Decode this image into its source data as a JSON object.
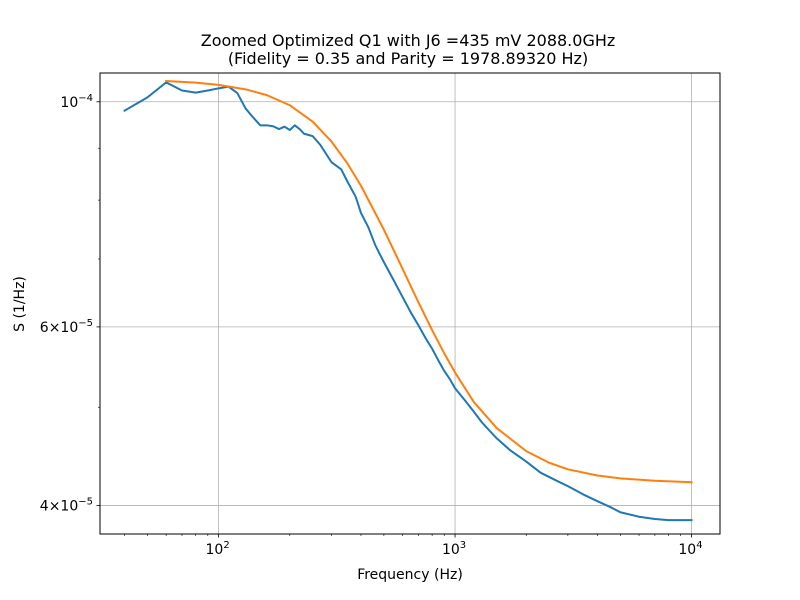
{
  "chart_data": {
    "type": "line",
    "title_lines": [
      "Zoomed Optimized Q1 with J6 =435 mV 2088.0GHz",
      "(Fidelity = 0.35 and Parity = 1978.89320 Hz)"
    ],
    "xlabel": "Frequency (Hz)",
    "ylabel": "S (1/Hz)",
    "x_scale": "log",
    "y_scale": "log",
    "xlim": [
      31.5,
      13200
    ],
    "ylim": [
      3.75e-05,
      0.00010675
    ],
    "x_ticks": [
      {
        "value": 100,
        "base": "10",
        "exp": "2"
      },
      {
        "value": 1000,
        "base": "10",
        "exp": "3"
      },
      {
        "value": 10000,
        "base": "10",
        "exp": "4"
      }
    ],
    "y_ticks": [
      {
        "value": 4e-05,
        "mant": "4",
        "base": "10",
        "exp": "−5"
      },
      {
        "value": 6e-05,
        "mant": "6",
        "base": "10",
        "exp": "−5"
      },
      {
        "value": 0.0001,
        "mant": "",
        "base": "10",
        "exp": "−4"
      }
    ],
    "y_minor_ticks": [
      5e-05,
      7e-05,
      8e-05,
      9e-05
    ],
    "grid": true,
    "series": [
      {
        "color": "#1f77b4",
        "x": [
          40,
          50,
          60,
          70,
          80,
          90,
          100,
          110,
          120,
          130,
          140,
          150,
          160,
          170,
          180,
          190,
          200,
          210,
          220,
          230,
          250,
          270,
          300,
          330,
          350,
          380,
          400,
          430,
          460,
          500,
          550,
          600,
          650,
          700,
          750,
          800,
          850,
          900,
          950,
          1000,
          1100,
          1200,
          1300,
          1400,
          1500,
          1700,
          2000,
          2300,
          2700,
          3000,
          3500,
          4000,
          4500,
          5000,
          6000,
          7000,
          8000,
          9000,
          10000
        ],
        "y": [
          9.8e-05,
          0.000101,
          0.0001045,
          0.0001026,
          0.0001021,
          0.0001026,
          0.0001031,
          0.0001035,
          0.000102,
          9.85e-05,
          9.65e-05,
          9.48e-05,
          9.48e-05,
          9.46e-05,
          9.4e-05,
          9.45e-05,
          9.38e-05,
          9.48e-05,
          9.4e-05,
          9.3e-05,
          9.25e-05,
          9.06e-05,
          8.72e-05,
          8.58e-05,
          8.35e-05,
          8.06e-05,
          7.77e-05,
          7.52e-05,
          7.22e-05,
          6.95e-05,
          6.67e-05,
          6.42e-05,
          6.2e-05,
          6.02e-05,
          5.85e-05,
          5.71e-05,
          5.56e-05,
          5.43e-05,
          5.33e-05,
          5.22e-05,
          5.08e-05,
          4.95e-05,
          4.83e-05,
          4.74e-05,
          4.66e-05,
          4.54e-05,
          4.42e-05,
          4.31e-05,
          4.23e-05,
          4.18e-05,
          4.1e-05,
          4.04e-05,
          3.99e-05,
          3.94e-05,
          3.9e-05,
          3.88e-05,
          3.87e-05,
          3.87e-05,
          3.87e-05
        ]
      },
      {
        "color": "#ff7f0e",
        "x": [
          60,
          80,
          100,
          130,
          160,
          200,
          250,
          300,
          350,
          400,
          500,
          600,
          700,
          800,
          900,
          1000,
          1200,
          1500,
          2000,
          2500,
          3000,
          4000,
          5000,
          7000,
          10000
        ],
        "y": [
          0.000104829,
          0.000104431,
          0.000103916,
          0.000102864,
          0.000101525,
          9.9218e-05,
          9.5574e-05,
          9.1385e-05,
          8.6989e-05,
          8.2651e-05,
          7.4814e-05,
          6.8427e-05,
          6.3436e-05,
          5.9551e-05,
          5.6506e-05,
          5.4096e-05,
          5.0602e-05,
          4.7695e-05,
          4.5258e-05,
          4.4081e-05,
          4.3431e-05,
          4.2826e-05,
          4.2547e-05,
          4.2314e-05,
          4.2174e-05
        ]
      }
    ]
  }
}
